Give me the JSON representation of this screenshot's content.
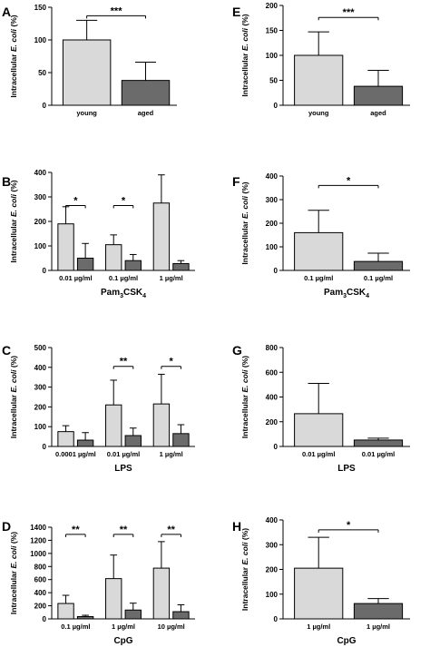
{
  "colors": {
    "young": "#d9d9d9",
    "aged": "#6b6b6b",
    "axis": "#000000"
  },
  "chart_data": [
    {
      "panel": "A",
      "type": "bar",
      "ylabel": "Intracellular E. coli (%)",
      "ylim": [
        0,
        150
      ],
      "yticks": [
        0,
        50,
        100,
        150
      ],
      "groups": [
        {
          "label": "young",
          "center_bar": true
        },
        {
          "label": "aged",
          "center_bar": true
        }
      ],
      "bars": [
        {
          "label": "young",
          "value": 100,
          "err": 30,
          "color": "young"
        },
        {
          "label": "aged",
          "value": 38,
          "err": 28,
          "color": "aged"
        }
      ],
      "sig": [
        {
          "from": 0,
          "to": 1,
          "text": "***",
          "y": 137
        }
      ]
    },
    {
      "panel": "B",
      "type": "bar",
      "ylabel": "Intracellular E. coli (%)",
      "ylim": [
        0,
        400
      ],
      "yticks": [
        0,
        100,
        200,
        300,
        400
      ],
      "xlabel": "Pam3CSK4",
      "groups": [
        {
          "label": "0.01 µg/ml"
        },
        {
          "label": "0.1 µg/ml"
        },
        {
          "label": "1 µg/ml"
        }
      ],
      "bars": [
        {
          "value": 190,
          "err": 70,
          "color": "young"
        },
        {
          "value": 50,
          "err": 60,
          "color": "aged"
        },
        {
          "value": 105,
          "err": 40,
          "color": "young"
        },
        {
          "value": 40,
          "err": 25,
          "color": "aged"
        },
        {
          "value": 275,
          "err": 115,
          "color": "young"
        },
        {
          "value": 28,
          "err": 12,
          "color": "aged"
        }
      ],
      "sig": [
        {
          "from": 0,
          "to": 1,
          "text": "*",
          "y": 265
        },
        {
          "from": 2,
          "to": 3,
          "text": "*",
          "y": 265
        }
      ]
    },
    {
      "panel": "C",
      "type": "bar",
      "ylabel": "Intracellular E. coli (%)",
      "ylim": [
        0,
        500
      ],
      "yticks": [
        0,
        100,
        200,
        300,
        400,
        500
      ],
      "xlabel": "LPS",
      "groups": [
        {
          "label": "0.0001 µg/ml"
        },
        {
          "label": "0.01 µg/ml"
        },
        {
          "label": "1 µg/ml"
        }
      ],
      "bars": [
        {
          "value": 75,
          "err": 30,
          "color": "young"
        },
        {
          "value": 32,
          "err": 38,
          "color": "aged"
        },
        {
          "value": 210,
          "err": 125,
          "color": "young"
        },
        {
          "value": 55,
          "err": 38,
          "color": "aged"
        },
        {
          "value": 215,
          "err": 150,
          "color": "young"
        },
        {
          "value": 65,
          "err": 45,
          "color": "aged"
        }
      ],
      "sig": [
        {
          "from": 2,
          "to": 3,
          "text": "**",
          "y": 405
        },
        {
          "from": 4,
          "to": 5,
          "text": "*",
          "y": 405
        }
      ]
    },
    {
      "panel": "D",
      "type": "bar",
      "ylabel": "Intracellular E. coli (%)",
      "ylim": [
        0,
        1400
      ],
      "yticks": [
        0,
        200,
        400,
        600,
        800,
        1000,
        1200,
        1400
      ],
      "xlabel": "CpG",
      "groups": [
        {
          "label": "0.1 µg/ml"
        },
        {
          "label": "1 µg/ml"
        },
        {
          "label": "10 µg/ml"
        }
      ],
      "bars": [
        {
          "value": 235,
          "err": 125,
          "color": "young"
        },
        {
          "value": 35,
          "err": 20,
          "color": "aged"
        },
        {
          "value": 615,
          "err": 360,
          "color": "young"
        },
        {
          "value": 135,
          "err": 105,
          "color": "aged"
        },
        {
          "value": 775,
          "err": 405,
          "color": "young"
        },
        {
          "value": 110,
          "err": 105,
          "color": "aged"
        }
      ],
      "sig": [
        {
          "from": 0,
          "to": 1,
          "text": "**",
          "y": 1290
        },
        {
          "from": 2,
          "to": 3,
          "text": "**",
          "y": 1290
        },
        {
          "from": 4,
          "to": 5,
          "text": "**",
          "y": 1290
        }
      ]
    },
    {
      "panel": "E",
      "type": "bar",
      "ylabel": "Intracellular E. coli (%)",
      "ylim": [
        0,
        200
      ],
      "yticks": [
        0,
        50,
        100,
        150,
        200
      ],
      "groups": [
        {
          "label": "young",
          "center_bar": true
        },
        {
          "label": "aged",
          "center_bar": true
        }
      ],
      "bars": [
        {
          "label": "young",
          "value": 100,
          "err": 47,
          "color": "young"
        },
        {
          "label": "aged",
          "value": 38,
          "err": 32,
          "color": "aged"
        }
      ],
      "sig": [
        {
          "from": 0,
          "to": 1,
          "text": "***",
          "y": 176
        }
      ]
    },
    {
      "panel": "F",
      "type": "bar",
      "ylabel": "Intracellular E. coli (%)",
      "ylim": [
        0,
        400
      ],
      "yticks": [
        0,
        100,
        200,
        300,
        400
      ],
      "xlabel": "Pam3CSK4",
      "groups": [
        {
          "label": "0.1 µg/ml",
          "center_bar": true
        },
        {
          "label": "0.1 µg/ml",
          "center_bar": true
        }
      ],
      "bars": [
        {
          "value": 160,
          "err": 95,
          "color": "young"
        },
        {
          "value": 38,
          "err": 35,
          "color": "aged"
        }
      ],
      "sig": [
        {
          "from": 0,
          "to": 1,
          "text": "*",
          "y": 360
        }
      ]
    },
    {
      "panel": "G",
      "type": "bar",
      "ylabel": "Intracellular E. coli (%)",
      "ylim": [
        0,
        800
      ],
      "yticks": [
        0,
        200,
        400,
        600,
        800
      ],
      "xlabel": "LPS",
      "groups": [
        {
          "label": "0.01 µg/ml",
          "center_bar": true
        },
        {
          "label": "0.01 µg/ml",
          "center_bar": true
        }
      ],
      "bars": [
        {
          "value": 265,
          "err": 245,
          "color": "young"
        },
        {
          "value": 52,
          "err": 15,
          "color": "aged"
        }
      ],
      "sig": []
    },
    {
      "panel": "H",
      "type": "bar",
      "ylabel": "Intracellular E. coli (%)",
      "ylim": [
        0,
        400
      ],
      "yticks": [
        0,
        100,
        200,
        300,
        400
      ],
      "xlabel": "CpG",
      "groups": [
        {
          "label": "1 µg/ml",
          "center_bar": true
        },
        {
          "label": "1 µg/ml",
          "center_bar": true
        }
      ],
      "bars": [
        {
          "value": 205,
          "err": 125,
          "color": "young"
        },
        {
          "value": 62,
          "err": 20,
          "color": "aged"
        }
      ],
      "sig": [
        {
          "from": 0,
          "to": 1,
          "text": "*",
          "y": 360
        }
      ]
    }
  ]
}
